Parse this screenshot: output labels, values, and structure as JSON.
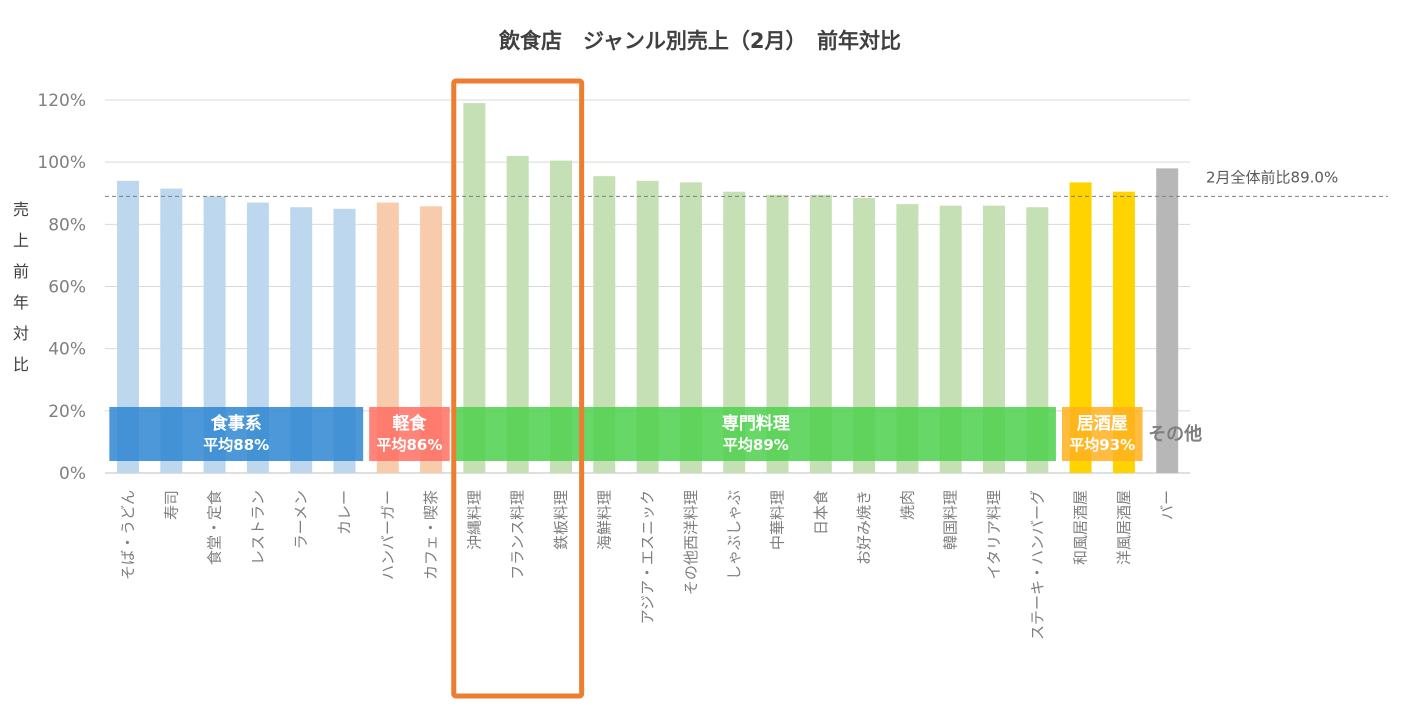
{
  "chart_data": {
    "type": "bar",
    "title": "飲食店　ジャンル別売上（2月）　前年対比",
    "ylabel": "売上前年対比",
    "ylim": [
      0,
      120
    ],
    "yticks": [
      "0%",
      "20%",
      "40%",
      "60%",
      "80%",
      "100%",
      "120%"
    ],
    "grid": true,
    "categories": [
      "そば・うどん",
      "寿司",
      "食堂・定食",
      "レストラン",
      "ラーメン",
      "カレー",
      "ハンバーガー",
      "カフェ・喫茶",
      "沖縄料理",
      "フランス料理",
      "鉄板料理",
      "海鮮料理",
      "アジア・エスニック",
      "その他西洋料理",
      "しゃぶしゃぶ",
      "中華料理",
      "日本食",
      "お好み焼き",
      "焼肉",
      "韓国料理",
      "イタリア料理",
      "ステーキ・ハンバーグ",
      "和風居酒屋",
      "洋風居酒屋",
      "バー"
    ],
    "values": [
      94,
      91.5,
      89,
      87,
      85.5,
      85,
      87,
      85.8,
      119,
      102,
      100.5,
      95.5,
      94,
      93.5,
      90.5,
      89.5,
      89.5,
      88.5,
      86.5,
      86,
      86,
      85.5,
      93.5,
      90.5,
      98
    ],
    "groups": [
      {
        "title": "食事系",
        "subtitle": "平均88%",
        "start": 0,
        "end": 5,
        "bar_color": "#BDD7EE",
        "band_color": "#2E86D1"
      },
      {
        "title": "軽食",
        "subtitle": "平均86%",
        "start": 6,
        "end": 7,
        "bar_color": "#F8CBAD",
        "band_color": "#FF6F61"
      },
      {
        "title": "専門料理",
        "subtitle": "平均89%",
        "start": 8,
        "end": 21,
        "bar_color": "#C5E0B4",
        "band_color": "#4CD04C"
      },
      {
        "title": "居酒屋",
        "subtitle": "平均93%",
        "start": 22,
        "end": 23,
        "bar_color": "#FFD300",
        "band_color": "#FFB020"
      },
      {
        "title": "その他",
        "subtitle": "",
        "start": 24,
        "end": 24,
        "bar_color": "#B7B7B7",
        "band_color": ""
      }
    ],
    "reference_line": {
      "value": 89,
      "label": "2月全体前比89.0%"
    },
    "highlight": {
      "start": 8,
      "end": 10,
      "color": "#ED7D31"
    }
  }
}
